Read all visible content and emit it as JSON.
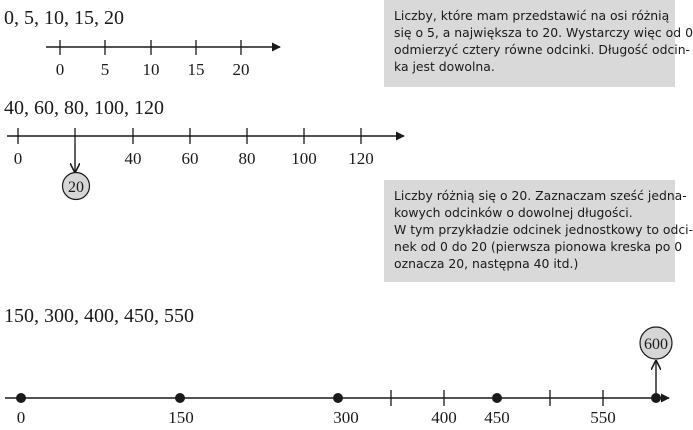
{
  "section1": {
    "sequence": "0, 5, 10, 15, 20",
    "ticks": [
      "0",
      "5",
      "10",
      "15",
      "20"
    ],
    "note_lines": [
      "Liczby, które mam przedstawić na osi różnią",
      "się o 5, a największa to 20. Wystarczy więc od 0",
      "odmierzyć cztery równe odcinki. Długość odcin-",
      "ka jest dowolna."
    ]
  },
  "section2": {
    "sequence": "40, 60, 80, 100, 120",
    "ticks": [
      "0",
      "",
      "40",
      "60",
      "80",
      "100",
      "120"
    ],
    "marker": "20",
    "note_lines": [
      "Liczby różnią się o 20. Zaznaczam sześć jedna-",
      "kowych odcinków o dowolnej długości.",
      "W tym przykładzie odcinek jednostkowy to odci-",
      "nek od 0 do 20 (pierwsza pionowa kreska po 0",
      "oznacza 20, następna 40 itd.)"
    ]
  },
  "section3": {
    "sequence": "150, 300, 400, 450, 550",
    "ticks": [
      "0",
      "150",
      "300",
      "400",
      "450",
      "550"
    ],
    "marker": "600"
  },
  "colors": {
    "note_bg": "#d9d9d9",
    "bubble_fill": "#d6d6d6",
    "ink": "#1a1a1a"
  }
}
